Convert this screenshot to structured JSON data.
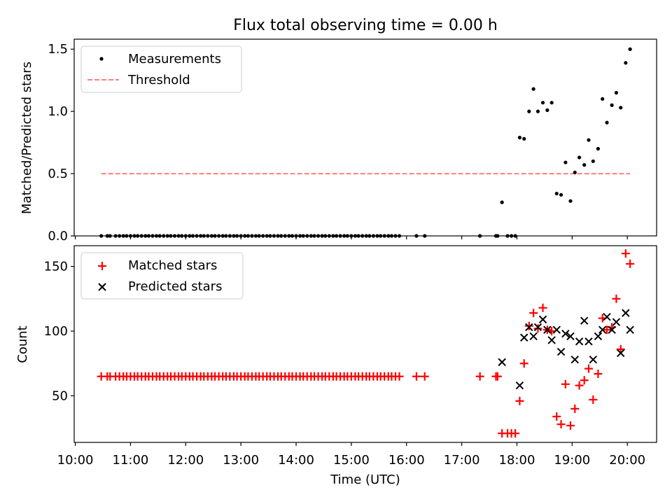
{
  "chart_data": {
    "title": "Flux total observing time = 0.00 h",
    "xlabel": "Time (UTC)",
    "x_ticks": [
      "10:00",
      "11:00",
      "12:00",
      "13:00",
      "14:00",
      "15:00",
      "16:00",
      "17:00",
      "18:00",
      "19:00",
      "20:00"
    ],
    "x_range_hours": [
      9.98,
      20.53
    ],
    "panels": [
      {
        "type": "scatter",
        "ylabel": "Matched/Predicted stars",
        "ylim": [
          0,
          1.58
        ],
        "y_ticks": [
          "0.0",
          "0.5",
          "1.0",
          "1.5"
        ],
        "legend_position": "upper-left",
        "series": [
          {
            "name": "Measurements",
            "marker": "dot",
            "color": "#000000",
            "x": [
              10.47,
              10.58,
              10.63,
              10.73,
              10.8,
              10.87,
              10.93,
              11.0,
              11.07,
              11.13,
              11.2,
              11.27,
              11.33,
              11.4,
              11.47,
              11.53,
              11.6,
              11.67,
              11.73,
              11.8,
              11.87,
              11.93,
              12.0,
              12.07,
              12.13,
              12.2,
              12.27,
              12.33,
              12.4,
              12.47,
              12.53,
              12.6,
              12.67,
              12.73,
              12.8,
              12.87,
              12.93,
              13.0,
              13.07,
              13.13,
              13.2,
              13.27,
              13.33,
              13.4,
              13.47,
              13.53,
              13.6,
              13.67,
              13.73,
              13.8,
              13.87,
              13.93,
              14.0,
              14.07,
              14.13,
              14.2,
              14.27,
              14.33,
              14.4,
              14.47,
              14.53,
              14.6,
              14.67,
              14.73,
              14.8,
              14.87,
              14.93,
              15.0,
              15.07,
              15.13,
              15.2,
              15.27,
              15.33,
              15.4,
              15.47,
              15.53,
              15.6,
              15.67,
              15.73,
              15.8,
              15.87,
              16.18,
              16.33,
              17.33,
              17.62,
              17.65,
              17.73,
              17.83,
              17.9,
              17.97,
              18.05,
              18.13,
              18.22,
              18.3,
              18.38,
              18.47,
              18.55,
              18.63,
              18.72,
              18.8,
              18.88,
              18.97,
              19.05,
              19.13,
              19.22,
              19.3,
              19.38,
              19.47,
              19.55,
              19.63,
              19.72,
              19.8,
              19.88,
              19.97,
              20.05
            ],
            "y": [
              0,
              0,
              0,
              0,
              0,
              0,
              0,
              0,
              0,
              0,
              0,
              0,
              0,
              0,
              0,
              0,
              0,
              0,
              0,
              0,
              0,
              0,
              0,
              0,
              0,
              0,
              0,
              0,
              0,
              0,
              0,
              0,
              0,
              0,
              0,
              0,
              0,
              0,
              0,
              0,
              0,
              0,
              0,
              0,
              0,
              0,
              0,
              0,
              0,
              0,
              0,
              0,
              0,
              0,
              0,
              0,
              0,
              0,
              0,
              0,
              0,
              0,
              0,
              0,
              0,
              0,
              0,
              0,
              0,
              0,
              0,
              0,
              0,
              0,
              0,
              0,
              0,
              0,
              0,
              0,
              0,
              0,
              0,
              0,
              0,
              0,
              0.27,
              0,
              0,
              0,
              0.79,
              0.78,
              1.0,
              1.18,
              1.0,
              1.07,
              1.01,
              1.07,
              0.34,
              0.33,
              0.59,
              0.28,
              0.51,
              0.63,
              0.57,
              0.77,
              0.6,
              0.7,
              1.1,
              0.91,
              1.05,
              1.15,
              1.03,
              1.39,
              1.5
            ]
          },
          {
            "name": "Threshold",
            "type": "line",
            "style": "dashed",
            "color": "#ff7f7f",
            "x": [
              10.47,
              20.05
            ],
            "y": [
              0.5,
              0.5
            ]
          }
        ]
      },
      {
        "type": "scatter",
        "ylabel": "Count",
        "ylim": [
          14,
          166
        ],
        "y_ticks": [
          "50",
          "100",
          "150"
        ],
        "legend_position": "upper-left",
        "series": [
          {
            "name": "Matched stars",
            "marker": "plus",
            "color": "#ff0000",
            "x": [
              10.47,
              10.58,
              10.63,
              10.73,
              10.8,
              10.87,
              10.93,
              11.0,
              11.07,
              11.13,
              11.2,
              11.27,
              11.33,
              11.4,
              11.47,
              11.53,
              11.6,
              11.67,
              11.73,
              11.8,
              11.87,
              11.93,
              12.0,
              12.07,
              12.13,
              12.2,
              12.27,
              12.33,
              12.4,
              12.47,
              12.53,
              12.6,
              12.67,
              12.73,
              12.8,
              12.87,
              12.93,
              13.0,
              13.07,
              13.13,
              13.2,
              13.27,
              13.33,
              13.4,
              13.47,
              13.53,
              13.6,
              13.67,
              13.73,
              13.8,
              13.87,
              13.93,
              14.0,
              14.07,
              14.13,
              14.2,
              14.27,
              14.33,
              14.4,
              14.47,
              14.53,
              14.6,
              14.67,
              14.73,
              14.8,
              14.87,
              14.93,
              15.0,
              15.07,
              15.13,
              15.2,
              15.27,
              15.33,
              15.4,
              15.47,
              15.53,
              15.6,
              15.67,
              15.73,
              15.8,
              15.87,
              16.18,
              16.33,
              17.33,
              17.62,
              17.65,
              17.73,
              17.83,
              17.9,
              17.97,
              18.05,
              18.13,
              18.22,
              18.3,
              18.38,
              18.47,
              18.55,
              18.63,
              18.72,
              18.8,
              18.88,
              18.97,
              19.05,
              19.13,
              19.22,
              19.3,
              19.38,
              19.47,
              19.55,
              19.63,
              19.72,
              19.8,
              19.88,
              19.97,
              20.05
            ],
            "y": [
              65,
              65,
              65,
              65,
              65,
              65,
              65,
              65,
              65,
              65,
              65,
              65,
              65,
              65,
              65,
              65,
              65,
              65,
              65,
              65,
              65,
              65,
              65,
              65,
              65,
              65,
              65,
              65,
              65,
              65,
              65,
              65,
              65,
              65,
              65,
              65,
              65,
              65,
              65,
              65,
              65,
              65,
              65,
              65,
              65,
              65,
              65,
              65,
              65,
              65,
              65,
              65,
              65,
              65,
              65,
              65,
              65,
              65,
              65,
              65,
              65,
              65,
              65,
              65,
              65,
              65,
              65,
              65,
              65,
              65,
              65,
              65,
              65,
              65,
              65,
              65,
              65,
              65,
              65,
              65,
              65,
              65,
              65,
              65,
              65,
              65,
              21,
              21,
              21,
              21,
              46,
              75,
              104,
              114,
              102,
              118,
              101,
              100,
              34,
              28,
              59,
              27,
              40,
              58,
              62,
              71,
              47,
              67,
              110,
              101,
              103,
              125,
              86,
              160,
              152
            ]
          },
          {
            "name": "Predicted stars",
            "marker": "x",
            "color": "#000000",
            "x": [
              17.73,
              18.05,
              18.13,
              18.22,
              18.3,
              18.38,
              18.47,
              18.55,
              18.63,
              18.72,
              18.8,
              18.88,
              18.97,
              19.05,
              19.13,
              19.22,
              19.3,
              19.38,
              19.47,
              19.55,
              19.63,
              19.72,
              19.8,
              19.88,
              19.97,
              20.05
            ],
            "y": [
              76,
              58,
              95,
              103,
              96,
              103,
              109,
              101,
              93,
              101,
              84,
              98,
              96,
              78,
              92,
              108,
              92,
              78,
              96,
              101,
              111,
              101,
              107,
              83,
              114,
              101
            ]
          }
        ]
      }
    ]
  }
}
